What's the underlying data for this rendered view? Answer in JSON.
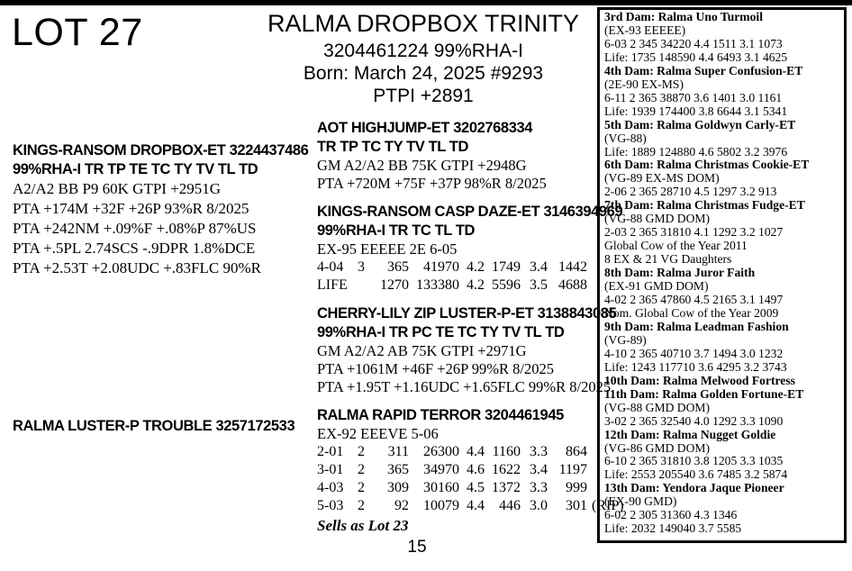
{
  "lot_label": "LOT 27",
  "page_number": "15",
  "animal": {
    "name": "RALMA DROPBOX TRINITY",
    "reg_line": "3204461224 99%RHA-I",
    "born_line": "Born: March 24, 2025 #9293",
    "ptpi_line": "PTPI +2891"
  },
  "left_column": {
    "sire_block": {
      "name_line": "KINGS-RANSOM DROPBOX-ET 3224437486",
      "codes_line": "99%RHA-I TR TP TE TC TY TV TL TD",
      "detail_lines": [
        "A2/A2 BB P9 60K GTPI +2951G",
        "PTA +174M +32F +26P 93%R 8/2025",
        "PTA +242NM +.09%F +.08%P 87%US",
        "PTA +.5PL 2.74SCS -.9DPR 1.8%DCE",
        "PTA +2.53T +2.08UDC +.83FLC 90%R"
      ]
    },
    "dam_name_line": "RALMA LUSTER-P TROUBLE 3257172533"
  },
  "middle_column": {
    "blocks": [
      {
        "name_line": "AOT HIGHJUMP-ET 3202768334",
        "codes_line": "TR TP TC TY TV TL TD",
        "detail_lines": [
          "GM A2/A2 BB 75K GTPI +2948G",
          "PTA +720M +75F +37P 98%R 8/2025"
        ],
        "lactation_rows": [],
        "footer_italic": ""
      },
      {
        "name_line": "KINGS-RANSOM CASP DAZE-ET 3146394969",
        "codes_line": "99%RHA-I TR TC TL TD",
        "detail_lines": [
          "EX-95 EEEEE 2E 6-05"
        ],
        "lactation_rows": [
          [
            "4-04",
            "3",
            "365",
            "41970",
            "4.2",
            "1749",
            "3.4",
            "1442",
            ""
          ],
          [
            "LIFE",
            "",
            "1270",
            "133380",
            "4.2",
            "5596",
            "3.5",
            "4688",
            ""
          ]
        ],
        "footer_italic": ""
      },
      {
        "name_line": "CHERRY-LILY ZIP LUSTER-P-ET 3138843085",
        "codes_line": "99%RHA-I TR PC TE TC TY TV TL TD",
        "detail_lines": [
          "GM A2/A2 AB 75K GTPI +2971G",
          "PTA +1061M +46F +26P 99%R 8/2025",
          "PTA +1.95T +1.16UDC +1.65FLC 99%R 8/2025"
        ],
        "lactation_rows": [],
        "footer_italic": ""
      },
      {
        "name_line": "RALMA RAPID TERROR 3204461945",
        "codes_line": "",
        "detail_lines": [
          "EX-92 EEEVE 5-06"
        ],
        "lactation_rows": [
          [
            "2-01",
            "2",
            "311",
            "26300",
            "4.4",
            "1160",
            "3.3",
            "864",
            ""
          ],
          [
            "3-01",
            "2",
            "365",
            "34970",
            "4.6",
            "1622",
            "3.4",
            "1197",
            ""
          ],
          [
            "4-03",
            "2",
            "309",
            "30160",
            "4.5",
            "1372",
            "3.3",
            "999",
            ""
          ],
          [
            "5-03",
            "2",
            "92",
            "10079",
            "4.4",
            "446",
            "3.0",
            "301",
            "(RIP)"
          ]
        ],
        "footer_italic": "Sells as Lot 23"
      }
    ]
  },
  "dam_box": {
    "entries": [
      {
        "title": "3rd Dam: Ralma Uno Turmoil",
        "lines": [
          "(EX-93 EEEEE)",
          "6-03 2 345 34220 4.4 1511 3.1 1073",
          "Life: 1735 148590 4.4 6493 3.1 4625"
        ]
      },
      {
        "title": "4th Dam: Ralma Super Confusion-ET",
        "lines": [
          "(2E-90 EX-MS)",
          "6-11 2 365 38870 3.6 1401 3.0 1161",
          "Life: 1939 174400 3.8 6644 3.1 5341"
        ]
      },
      {
        "title": "5th Dam: Ralma Goldwyn Carly-ET",
        "lines": [
          "(VG-88)",
          "Life: 1889 124880 4.6 5802 3.2 3976"
        ]
      },
      {
        "title": "6th Dam: Ralma Christmas Cookie-ET",
        "lines": [
          "(VG-89 EX-MS DOM)",
          "2-06 2 365 28710 4.5 1297 3.2 913"
        ]
      },
      {
        "title": "7th Dam: Ralma Christmas Fudge-ET",
        "lines": [
          "(VG-88 GMD DOM)",
          "2-03 2 365 31810 4.1 1292 3.2 1027",
          "Global Cow of the Year 2011",
          "8 EX & 21 VG Daughters"
        ]
      },
      {
        "title": "8th Dam: Ralma Juror Faith",
        "lines": [
          "(EX-91 GMD DOM)",
          "4-02 2 365 47860 4.5 2165 3.1 1497",
          "Nom. Global Cow of the Year 2009"
        ]
      },
      {
        "title": "9th Dam: Ralma Leadman Fashion",
        "lines": [
          "(VG-89)",
          "4-10 2 365 40710 3.7 1494 3.0 1232",
          "Life: 1243 117710 3.6 4295 3.2 3743"
        ]
      },
      {
        "title": "10th Dam: Ralma Melwood Fortress",
        "lines": []
      },
      {
        "title": "11th Dam: Ralma Golden Fortune-ET",
        "lines": [
          "(VG-88 GMD DOM)",
          "3-02 2 365 32540 4.0 1292 3.3 1090"
        ]
      },
      {
        "title": "12th Dam: Ralma Nugget Goldie",
        "lines": [
          "(VG-86 GMD DOM)",
          "6-10 2 365 31810 3.8 1205 3.3 1035",
          "Life: 2553 205540 3.6 7485 3.2 5874"
        ]
      },
      {
        "title": "13th Dam: Yendora Jaque Pioneer",
        "lines": [
          "(EX-90 GMD)",
          "6-02 2 305 31360 4.3 1346",
          "Life: 2032 149040 3.7 5585"
        ]
      }
    ]
  }
}
